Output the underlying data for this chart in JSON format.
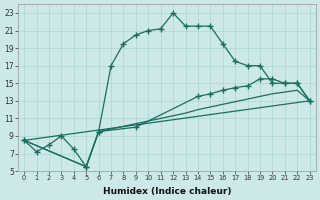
{
  "xlabel": "Humidex (Indice chaleur)",
  "background_color": "#cce8e8",
  "grid_color": "#aad4d4",
  "line_color": "#1a6e60",
  "xlim_min": -0.5,
  "xlim_max": 23.5,
  "ylim_min": 5,
  "ylim_max": 24,
  "xticks": [
    0,
    1,
    2,
    3,
    4,
    5,
    6,
    7,
    8,
    9,
    10,
    11,
    12,
    13,
    14,
    15,
    16,
    17,
    18,
    19,
    20,
    21,
    22,
    23
  ],
  "yticks": [
    5,
    7,
    9,
    11,
    13,
    15,
    17,
    19,
    21,
    23
  ],
  "curve1_x": [
    0,
    1,
    2,
    3,
    4,
    5,
    6,
    7,
    8,
    9,
    10,
    11,
    12,
    13,
    14,
    15,
    16,
    17,
    18,
    19,
    20,
    21,
    22,
    23
  ],
  "curve1_y": [
    8.5,
    7.2,
    8.0,
    9.0,
    7.5,
    5.5,
    9.5,
    17.0,
    19.5,
    20.5,
    21.0,
    21.2,
    23.0,
    21.5,
    21.5,
    21.5,
    19.5,
    17.5,
    17.0,
    17.0,
    15.0,
    15.0,
    15.0,
    13.0
  ],
  "curve2_x": [
    0,
    23
  ],
  "curve2_y": [
    8.5,
    13.0
  ],
  "curve3_x": [
    0,
    5,
    6,
    7,
    8,
    9,
    10,
    11,
    12,
    13,
    14,
    15,
    16,
    17,
    18,
    19,
    20,
    21,
    22,
    23
  ],
  "curve3_y": [
    8.5,
    5.5,
    9.5,
    9.8,
    10.1,
    10.4,
    10.7,
    11.0,
    11.3,
    11.6,
    12.0,
    12.3,
    12.6,
    12.9,
    13.2,
    13.5,
    13.8,
    14.0,
    14.2,
    13.0
  ],
  "curve4_x": [
    0,
    5,
    6,
    9,
    14,
    15,
    16,
    17,
    18,
    19,
    20,
    21,
    22,
    23
  ],
  "curve4_y": [
    8.5,
    5.5,
    9.5,
    10.0,
    13.5,
    13.8,
    14.2,
    14.5,
    14.7,
    15.5,
    15.5,
    15.0,
    15.0,
    13.0
  ]
}
